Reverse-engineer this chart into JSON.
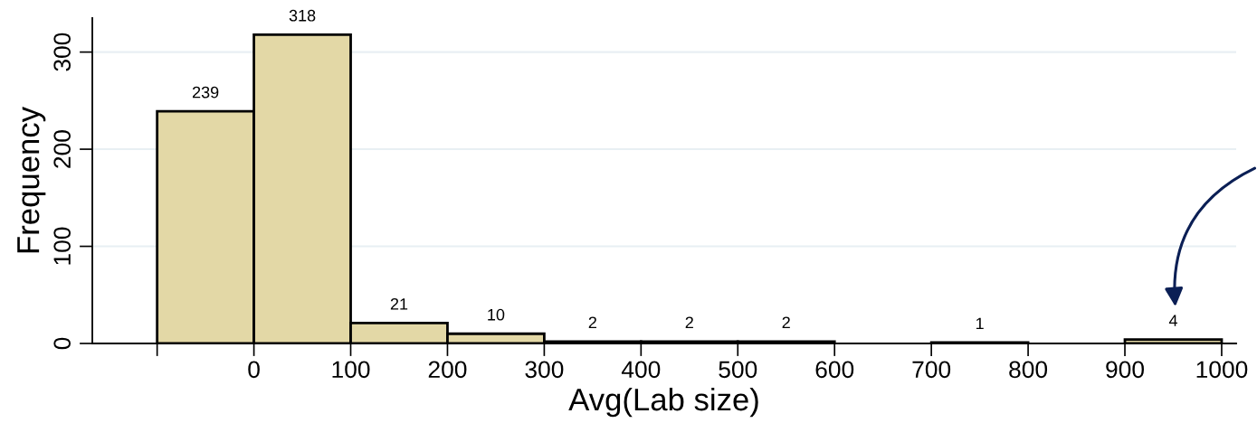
{
  "chart_data": {
    "type": "histogram",
    "xlabel": "Avg(Lab size)",
    "ylabel": "Frequency",
    "bins": [
      -100,
      0,
      100,
      200,
      300,
      400,
      500,
      600,
      700,
      800,
      900,
      1000
    ],
    "values": [
      239,
      318,
      21,
      10,
      2,
      2,
      2,
      0,
      1,
      0,
      4
    ],
    "value_labels": [
      "239",
      "318",
      "21",
      "10",
      "2",
      "2",
      "2",
      null,
      "1",
      null,
      "4"
    ],
    "color": "#e3d8a6",
    "xlim": [
      -167,
      1015
    ],
    "ylim": [
      0,
      335
    ],
    "xticks": [
      {
        "value": -100,
        "label": null
      },
      0,
      100,
      200,
      300,
      400,
      500,
      600,
      700,
      800,
      900,
      1000
    ],
    "yticks": [
      0,
      100,
      200,
      300
    ],
    "grid": "y"
  }
}
